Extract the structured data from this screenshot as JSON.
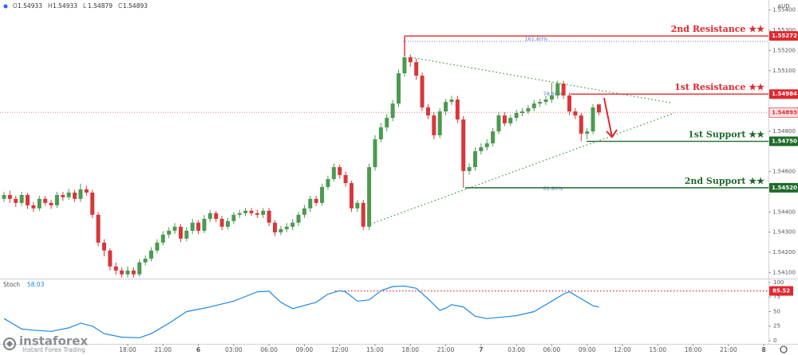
{
  "chart_data": {
    "type": "candlestick",
    "ohlc_legend": [
      {
        "label": "O",
        "value": 1.54933
      },
      {
        "label": "H",
        "value": 1.54933
      },
      {
        "label": "L",
        "value": 1.54879
      },
      {
        "label": "C",
        "value": 1.54893
      }
    ],
    "currency": "AUD",
    "up_color": "#4c9a50",
    "down_color": "#d8373a",
    "x": [
      7.5,
      8,
      8.5,
      9,
      9.5,
      10,
      10.5,
      11,
      11.5,
      12,
      12.5,
      13,
      13.5,
      14,
      14.5,
      15,
      15.5,
      16,
      16.5,
      17,
      17.5,
      18,
      18.5,
      19,
      19.5,
      20,
      20.5,
      21,
      21.5,
      22,
      22.5,
      23,
      23.5,
      24,
      24.5,
      25,
      25.5,
      26,
      26.5,
      27,
      27.5,
      28,
      28.5,
      29,
      29.5,
      30,
      30.5,
      31,
      31.5,
      32,
      32.5,
      33,
      33.5,
      34,
      34.5,
      35,
      35.5,
      36,
      36.5,
      37,
      37.5,
      38,
      38.5,
      39,
      39.5,
      40,
      40.5,
      41,
      41.5,
      42,
      42.5,
      43,
      43.5,
      44,
      44.5,
      45,
      45.5,
      46,
      46.5,
      47,
      47.5,
      48,
      48.5,
      49,
      49.5,
      50,
      50.5,
      51,
      51.5,
      52,
      52.5,
      53,
      53.5,
      54,
      54.5,
      55,
      55.5,
      56,
      56.5,
      57,
      57.5,
      58
    ],
    "open": [
      1.54465,
      1.54484,
      1.54465,
      1.54445,
      1.54484,
      1.54433,
      1.54418,
      1.54465,
      1.54445,
      1.54433,
      1.54484,
      1.54473,
      1.54496,
      1.54465,
      1.54512,
      1.54496,
      1.54386,
      1.54248,
      1.54209,
      1.5413,
      1.5411,
      1.54091,
      1.5411,
      1.54091,
      1.5415,
      1.54169,
      1.54209,
      1.54248,
      1.54288,
      1.54307,
      1.54327,
      1.54268,
      1.54307,
      1.54347,
      1.54307,
      1.54366,
      1.54394,
      1.54366,
      1.54327,
      1.54355,
      1.54386,
      1.54394,
      1.54406,
      1.54394,
      1.54386,
      1.54406,
      1.54347,
      1.54299,
      1.54315,
      1.54327,
      1.54347,
      1.54386,
      1.54418,
      1.54465,
      1.54445,
      1.54524,
      1.54563,
      1.54622,
      1.54583,
      1.54543,
      1.54418,
      1.54445,
      1.54327,
      1.54622,
      1.5476,
      1.54819,
      1.54866,
      1.54937,
      1.55087,
      1.55166,
      1.55142,
      1.55075,
      1.54918,
      1.54878,
      1.5478,
      1.54898,
      1.54945,
      1.54957,
      1.54858,
      1.54603,
      1.54622,
      1.54701,
      1.54721,
      1.5474,
      1.54799,
      1.54878,
      1.54839,
      1.54866,
      1.5489,
      1.54898,
      1.54914,
      1.54937,
      1.54945,
      1.54957,
      1.54977,
      1.55036,
      1.54977,
      1.54898,
      1.54878,
      1.54788,
      1.54799,
      1.54933
    ],
    "high": [
      1.545,
      1.54505,
      1.5448,
      1.545,
      1.54495,
      1.5445,
      1.5448,
      1.5448,
      1.5446,
      1.545,
      1.545,
      1.54515,
      1.5451,
      1.5454,
      1.5453,
      1.5451,
      1.544,
      1.54265,
      1.5422,
      1.5415,
      1.54125,
      1.5413,
      1.54125,
      1.54165,
      1.54185,
      1.54225,
      1.54265,
      1.54305,
      1.54325,
      1.54345,
      1.5434,
      1.54325,
      1.54365,
      1.5436,
      1.54385,
      1.5441,
      1.54405,
      1.5438,
      1.5437,
      1.544,
      1.5441,
      1.5442,
      1.5442,
      1.5441,
      1.5442,
      1.5442,
      1.5436,
      1.5433,
      1.54345,
      1.54365,
      1.544,
      1.54435,
      1.5448,
      1.5448,
      1.5454,
      1.5458,
      1.5464,
      1.54635,
      1.546,
      1.54555,
      1.5446,
      1.5446,
      1.5464,
      1.5478,
      1.5484,
      1.54885,
      1.54955,
      1.55105,
      1.5519,
      1.5518,
      1.5516,
      1.5509,
      1.54935,
      1.54895,
      1.54915,
      1.5496,
      1.54975,
      1.54975,
      1.54875,
      1.5464,
      1.5472,
      1.5474,
      1.5476,
      1.54815,
      1.54895,
      1.54895,
      1.5488,
      1.54905,
      1.54915,
      1.5493,
      1.54955,
      1.5496,
      1.54975,
      1.5504,
      1.5505,
      1.5505,
      1.5499,
      1.54915,
      1.5489,
      1.54815,
      1.54935,
      1.54933
    ],
    "low": [
      1.5445,
      1.54445,
      1.54425,
      1.5443,
      1.54415,
      1.544,
      1.54405,
      1.5443,
      1.54415,
      1.5442,
      1.54455,
      1.5446,
      1.5445,
      1.5445,
      1.5448,
      1.5437,
      1.5423,
      1.5418,
      1.5411,
      1.5409,
      1.54075,
      1.54075,
      1.54075,
      1.5408,
      1.54135,
      1.54155,
      1.54195,
      1.54235,
      1.5427,
      1.5429,
      1.5425,
      1.54255,
      1.5429,
      1.5429,
      1.54295,
      1.5435,
      1.5435,
      1.5431,
      1.54315,
      1.5434,
      1.5437,
      1.5438,
      1.5438,
      1.5437,
      1.5437,
      1.5433,
      1.5428,
      1.54285,
      1.543,
      1.5431,
      1.5433,
      1.5437,
      1.544,
      1.5443,
      1.5443,
      1.5451,
      1.5455,
      1.54565,
      1.54525,
      1.544,
      1.544,
      1.5431,
      1.5431,
      1.54605,
      1.54745,
      1.548,
      1.5485,
      1.5492,
      1.5507,
      1.5512,
      1.55055,
      1.549,
      1.5486,
      1.5476,
      1.54765,
      1.5488,
      1.5493,
      1.5484,
      1.5452,
      1.54585,
      1.54605,
      1.54685,
      1.54705,
      1.54725,
      1.54785,
      1.54825,
      1.54825,
      1.5485,
      1.54875,
      1.54885,
      1.549,
      1.5492,
      1.5493,
      1.5494,
      1.5496,
      1.5496,
      1.5488,
      1.5486,
      1.5475,
      1.5476,
      1.54785,
      1.54879
    ],
    "close": [
      1.54484,
      1.54465,
      1.54445,
      1.54484,
      1.54433,
      1.54418,
      1.54465,
      1.54445,
      1.54433,
      1.54484,
      1.54473,
      1.54496,
      1.54465,
      1.54512,
      1.54496,
      1.54386,
      1.54248,
      1.54209,
      1.5413,
      1.5411,
      1.54091,
      1.5411,
      1.54091,
      1.5415,
      1.54169,
      1.54209,
      1.54248,
      1.54288,
      1.54307,
      1.54327,
      1.54268,
      1.54307,
      1.54347,
      1.54307,
      1.54366,
      1.54394,
      1.54366,
      1.54327,
      1.54355,
      1.54386,
      1.54394,
      1.54406,
      1.54394,
      1.54386,
      1.54406,
      1.54347,
      1.54299,
      1.54315,
      1.54327,
      1.54347,
      1.54386,
      1.54418,
      1.54465,
      1.54445,
      1.54524,
      1.54563,
      1.54622,
      1.54583,
      1.54543,
      1.54418,
      1.54445,
      1.54327,
      1.54622,
      1.5476,
      1.54819,
      1.54866,
      1.54937,
      1.55087,
      1.55166,
      1.55142,
      1.55075,
      1.54918,
      1.54878,
      1.5478,
      1.54898,
      1.54945,
      1.54957,
      1.54858,
      1.54603,
      1.54622,
      1.54701,
      1.54721,
      1.5474,
      1.54799,
      1.54878,
      1.54839,
      1.54866,
      1.5489,
      1.54898,
      1.54914,
      1.54937,
      1.54945,
      1.54957,
      1.54977,
      1.55036,
      1.54977,
      1.54898,
      1.54878,
      1.54788,
      1.54799,
      1.54918,
      1.54893
    ],
    "xlim": [
      7.16,
      72.4
    ],
    "xticks": [
      {
        "value": 18,
        "label": "18:00"
      },
      {
        "value": 21,
        "label": "21:00"
      },
      {
        "value": 24,
        "label": "6"
      },
      {
        "value": 27,
        "label": "03:00"
      },
      {
        "value": 30,
        "label": "06:00"
      },
      {
        "value": 33,
        "label": "09:00"
      },
      {
        "value": 36,
        "label": "12:00"
      },
      {
        "value": 39,
        "label": "15:00"
      },
      {
        "value": 42,
        "label": "18:00"
      },
      {
        "value": 45,
        "label": "21:00"
      },
      {
        "value": 48,
        "label": "7"
      },
      {
        "value": 51,
        "label": "03:00"
      },
      {
        "value": 54,
        "label": "06:00"
      },
      {
        "value": 57,
        "label": "09:00"
      },
      {
        "value": 60,
        "label": "12:00"
      },
      {
        "value": 63,
        "label": "15:00"
      },
      {
        "value": 66,
        "label": "18:00"
      },
      {
        "value": 69,
        "label": "21:00"
      },
      {
        "value": 72,
        "label": "8"
      }
    ],
    "ylim": [
      1.5407,
      1.5545
    ],
    "yticks": [
      {
        "value": 1.554,
        "label": "1.55400"
      },
      {
        "value": 1.553,
        "label": "1.55300"
      },
      {
        "value": 1.552,
        "label": "1.55200"
      },
      {
        "value": 1.551,
        "label": "1.55100"
      },
      {
        "value": 1.548,
        "label": "1.54800"
      },
      {
        "value": 1.546,
        "label": "1.54600"
      },
      {
        "value": 1.544,
        "label": "1.54400"
      },
      {
        "value": 1.543,
        "label": "1.54300"
      },
      {
        "value": 1.542,
        "label": "1.54200"
      },
      {
        "value": 1.541,
        "label": "1.54100"
      }
    ],
    "last_price": {
      "value": 1.54893,
      "label": "1.54893"
    },
    "last_price_color": "#e0282e",
    "levels": [
      {
        "label": "2nd Resistance ★★",
        "price": {
          "value": 1.55272,
          "label": "1.55272"
        },
        "color": "#e0282e"
      },
      {
        "label": "1st Resistance ★★",
        "price": {
          "value": 1.54984,
          "label": "1.54984"
        },
        "color": "#e0282e"
      },
      {
        "label": "1st Support ★★",
        "price": {
          "value": 1.5475,
          "label": "1.54750"
        },
        "color": "#1f6b2a"
      },
      {
        "label": "2nd Support ★★",
        "price": {
          "value": 1.5452,
          "label": "1.54520"
        },
        "color": "#1f6b2a"
      }
    ],
    "fib_labels": [
      "161.80%",
      "78.60%",
      "61.80%"
    ],
    "indicator": {
      "name": "Stoch",
      "last": 58.03,
      "color": "#1e88e5",
      "x": [
        7.5,
        9,
        10,
        11.5,
        13,
        14,
        15,
        16,
        17.5,
        19,
        20,
        21.5,
        23,
        25,
        27,
        28,
        29,
        30,
        31,
        32,
        34,
        35,
        36,
        36.5,
        37.5,
        38.5,
        39.5,
        40.5,
        41.5,
        42.5,
        43.5,
        44.5,
        45,
        45.5,
        46.5,
        47.5,
        48.5,
        49.5,
        51,
        52.5,
        54,
        55,
        55.5,
        56.5,
        57.5,
        58
      ],
      "values": [
        38,
        20,
        18,
        16,
        22,
        30,
        25,
        12,
        6,
        5,
        12,
        30,
        50,
        58,
        68,
        76,
        84,
        85,
        66,
        55,
        66,
        80,
        86,
        84,
        68,
        70,
        86,
        93,
        94,
        90,
        72,
        52,
        56,
        62,
        58,
        42,
        38,
        40,
        43,
        50,
        68,
        80,
        84,
        72,
        60,
        58.03
      ],
      "ylim": [
        -5.5,
        104
      ],
      "yticks": [
        100,
        75,
        50,
        25,
        0
      ],
      "level": 85.52,
      "level_color": "#e0282e"
    },
    "brand": {
      "name": "instaforex",
      "tagline": "Instant Forex Trading"
    }
  }
}
